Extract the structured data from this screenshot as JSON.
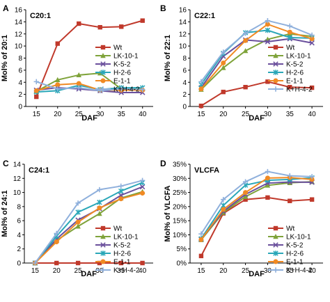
{
  "colors": {
    "Wt": "#c0392b",
    "LK-10-1": "#7fa33a",
    "K-5-2": "#6a4f9c",
    "H-2-6": "#2aa7b8",
    "E-1-1": "#f08a24",
    "K+H-4-2": "#8fb0dc"
  },
  "markers": {
    "Wt": "square",
    "LK-10-1": "triangle",
    "K-5-2": "x",
    "H-2-6": "star",
    "E-1-1": "circle",
    "K+H-4-2": "plus"
  },
  "chart_data": [
    {
      "type": "line",
      "panel_letter": "A",
      "title": "C20:1",
      "xlabel": "DAF",
      "ylabel": "Mol% of 20:1",
      "x": [
        15,
        20,
        25,
        30,
        35,
        40
      ],
      "ylim": [
        0,
        16
      ],
      "yticks": [
        0,
        2,
        4,
        6,
        8,
        10,
        12,
        14,
        16
      ],
      "legend_placement": "right",
      "series": [
        {
          "name": "Wt",
          "values": [
            1.6,
            10.4,
            13.7,
            13.1,
            13.2,
            14.2
          ]
        },
        {
          "name": "LK-10-1",
          "values": [
            2.5,
            4.4,
            5.2,
            5.5,
            2.9,
            2.9
          ]
        },
        {
          "name": "K-5-2",
          "values": [
            2.7,
            3.1,
            2.9,
            2.6,
            2.3,
            2.3
          ]
        },
        {
          "name": "H-2-6",
          "values": [
            2.4,
            2.6,
            3.5,
            2.8,
            3.1,
            3.1
          ]
        },
        {
          "name": "E-1-1",
          "values": [
            2.6,
            3.6,
            3.8,
            2.7,
            2.7,
            2.7
          ]
        },
        {
          "name": "K+H-4-2",
          "values": [
            4.1,
            2.9,
            3.1,
            2.6,
            2.9,
            2.8
          ]
        }
      ]
    },
    {
      "type": "line",
      "panel_letter": "B",
      "title": "C22:1",
      "xlabel": "DAF",
      "ylabel": "Mol% of 22:1",
      "x": [
        15,
        20,
        25,
        30,
        35,
        40
      ],
      "ylim": [
        0,
        16
      ],
      "yticks": [
        0,
        2,
        4,
        6,
        8,
        10,
        12,
        14,
        16
      ],
      "legend_placement": "bottom-right",
      "series": [
        {
          "name": "Wt",
          "values": [
            0.1,
            2.4,
            3.2,
            4.1,
            3.2,
            3.1
          ]
        },
        {
          "name": "LK-10-1",
          "values": [
            2.8,
            6.4,
            9.2,
            11.1,
            12.0,
            11.6
          ]
        },
        {
          "name": "K-5-2",
          "values": [
            3.1,
            8.3,
            11.0,
            10.7,
            11.2,
            10.5
          ]
        },
        {
          "name": "H-2-6",
          "values": [
            3.6,
            8.8,
            12.2,
            12.6,
            11.4,
            11.3
          ]
        },
        {
          "name": "E-1-1",
          "values": [
            2.9,
            7.2,
            10.9,
            13.6,
            12.3,
            11.2
          ]
        },
        {
          "name": "K+H-4-2",
          "values": [
            4.1,
            9.0,
            12.1,
            14.2,
            13.3,
            11.8
          ]
        }
      ]
    },
    {
      "type": "line",
      "panel_letter": "C",
      "title": "C24:1",
      "xlabel": "DAF",
      "ylabel": "Mol% of 24:1",
      "x": [
        15,
        20,
        25,
        30,
        35,
        40
      ],
      "ylim": [
        0,
        14
      ],
      "yticks": [
        0,
        2,
        4,
        6,
        8,
        10,
        12,
        14
      ],
      "legend_placement": "bottom-right",
      "series": [
        {
          "name": "Wt",
          "values": [
            0.0,
            0.0,
            0.0,
            0.0,
            0.0,
            0.0
          ]
        },
        {
          "name": "LK-10-1",
          "values": [
            0.0,
            3.2,
            5.2,
            7.0,
            9.2,
            10.1
          ]
        },
        {
          "name": "K-5-2",
          "values": [
            0.0,
            3.4,
            6.1,
            7.7,
            9.6,
            10.8
          ]
        },
        {
          "name": "H-2-6",
          "values": [
            0.0,
            3.8,
            7.2,
            8.6,
            10.2,
            11.4
          ]
        },
        {
          "name": "E-1-1",
          "values": [
            0.0,
            3.0,
            5.8,
            7.8,
            9.1,
            9.9
          ]
        },
        {
          "name": "K+H-4-2",
          "values": [
            0.0,
            4.2,
            8.5,
            10.4,
            10.9,
            11.7
          ]
        }
      ]
    },
    {
      "type": "line",
      "panel_letter": "D",
      "title": "VLCFA",
      "xlabel": "DAF",
      "ylabel": "Mol% of VLCFA",
      "x": [
        15,
        20,
        25,
        30,
        35,
        40
      ],
      "ylim": [
        0,
        35
      ],
      "yticks": [
        0,
        5,
        10,
        15,
        20,
        25,
        30,
        35
      ],
      "ytick_format": "percent",
      "legend_placement": "bottom-right",
      "series": [
        {
          "name": "Wt",
          "values": [
            2.5,
            17.6,
            22.5,
            23.2,
            22.0,
            22.5
          ]
        },
        {
          "name": "LK-10-1",
          "values": [
            8.2,
            17.9,
            23.5,
            27.5,
            28.4,
            28.8
          ]
        },
        {
          "name": "K-5-2",
          "values": [
            8.4,
            18.3,
            24.3,
            28.3,
            28.7,
            28.6
          ]
        },
        {
          "name": "H-2-6",
          "values": [
            8.6,
            20.4,
            27.6,
            29.3,
            29.6,
            30.2
          ]
        },
        {
          "name": "E-1-1",
          "values": [
            8.3,
            19.0,
            25.0,
            30.1,
            30.3,
            29.6
          ]
        },
        {
          "name": "K+H-4-2",
          "values": [
            10.3,
            22.5,
            28.8,
            32.4,
            30.9,
            30.6
          ]
        }
      ]
    }
  ]
}
